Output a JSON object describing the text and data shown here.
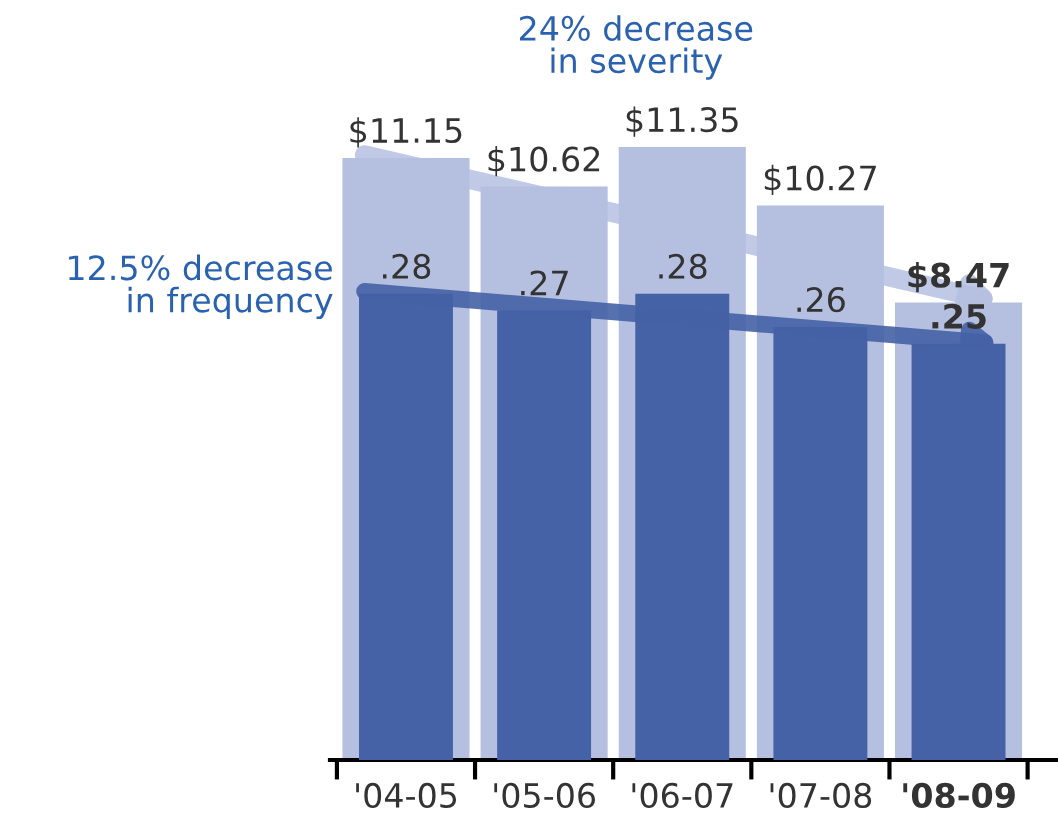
{
  "chart_data": {
    "type": "bar",
    "categories": [
      "'04-05",
      "'05-06",
      "'06-07",
      "'07-08",
      "'08-09"
    ],
    "series": [
      {
        "color": "#b5bfe0",
        "values": [
          11.15,
          10.62,
          11.35,
          10.27,
          8.47
        ],
        "value_labels": [
          "$11.15",
          "$10.62",
          "$11.35",
          "$10.27",
          "$8.47"
        ]
      },
      {
        "color": "#4562a6",
        "axis": "y2",
        "values": [
          0.28,
          0.27,
          0.28,
          0.26,
          0.25
        ],
        "value_labels": [
          ".28",
          ".27",
          ".28",
          ".26",
          ".25"
        ]
      }
    ],
    "tick_labels": "x",
    "legend": false,
    "annotations": [
      "24% decrease\nin severity",
      "12.5% decrease\nin frequency"
    ]
  }
}
